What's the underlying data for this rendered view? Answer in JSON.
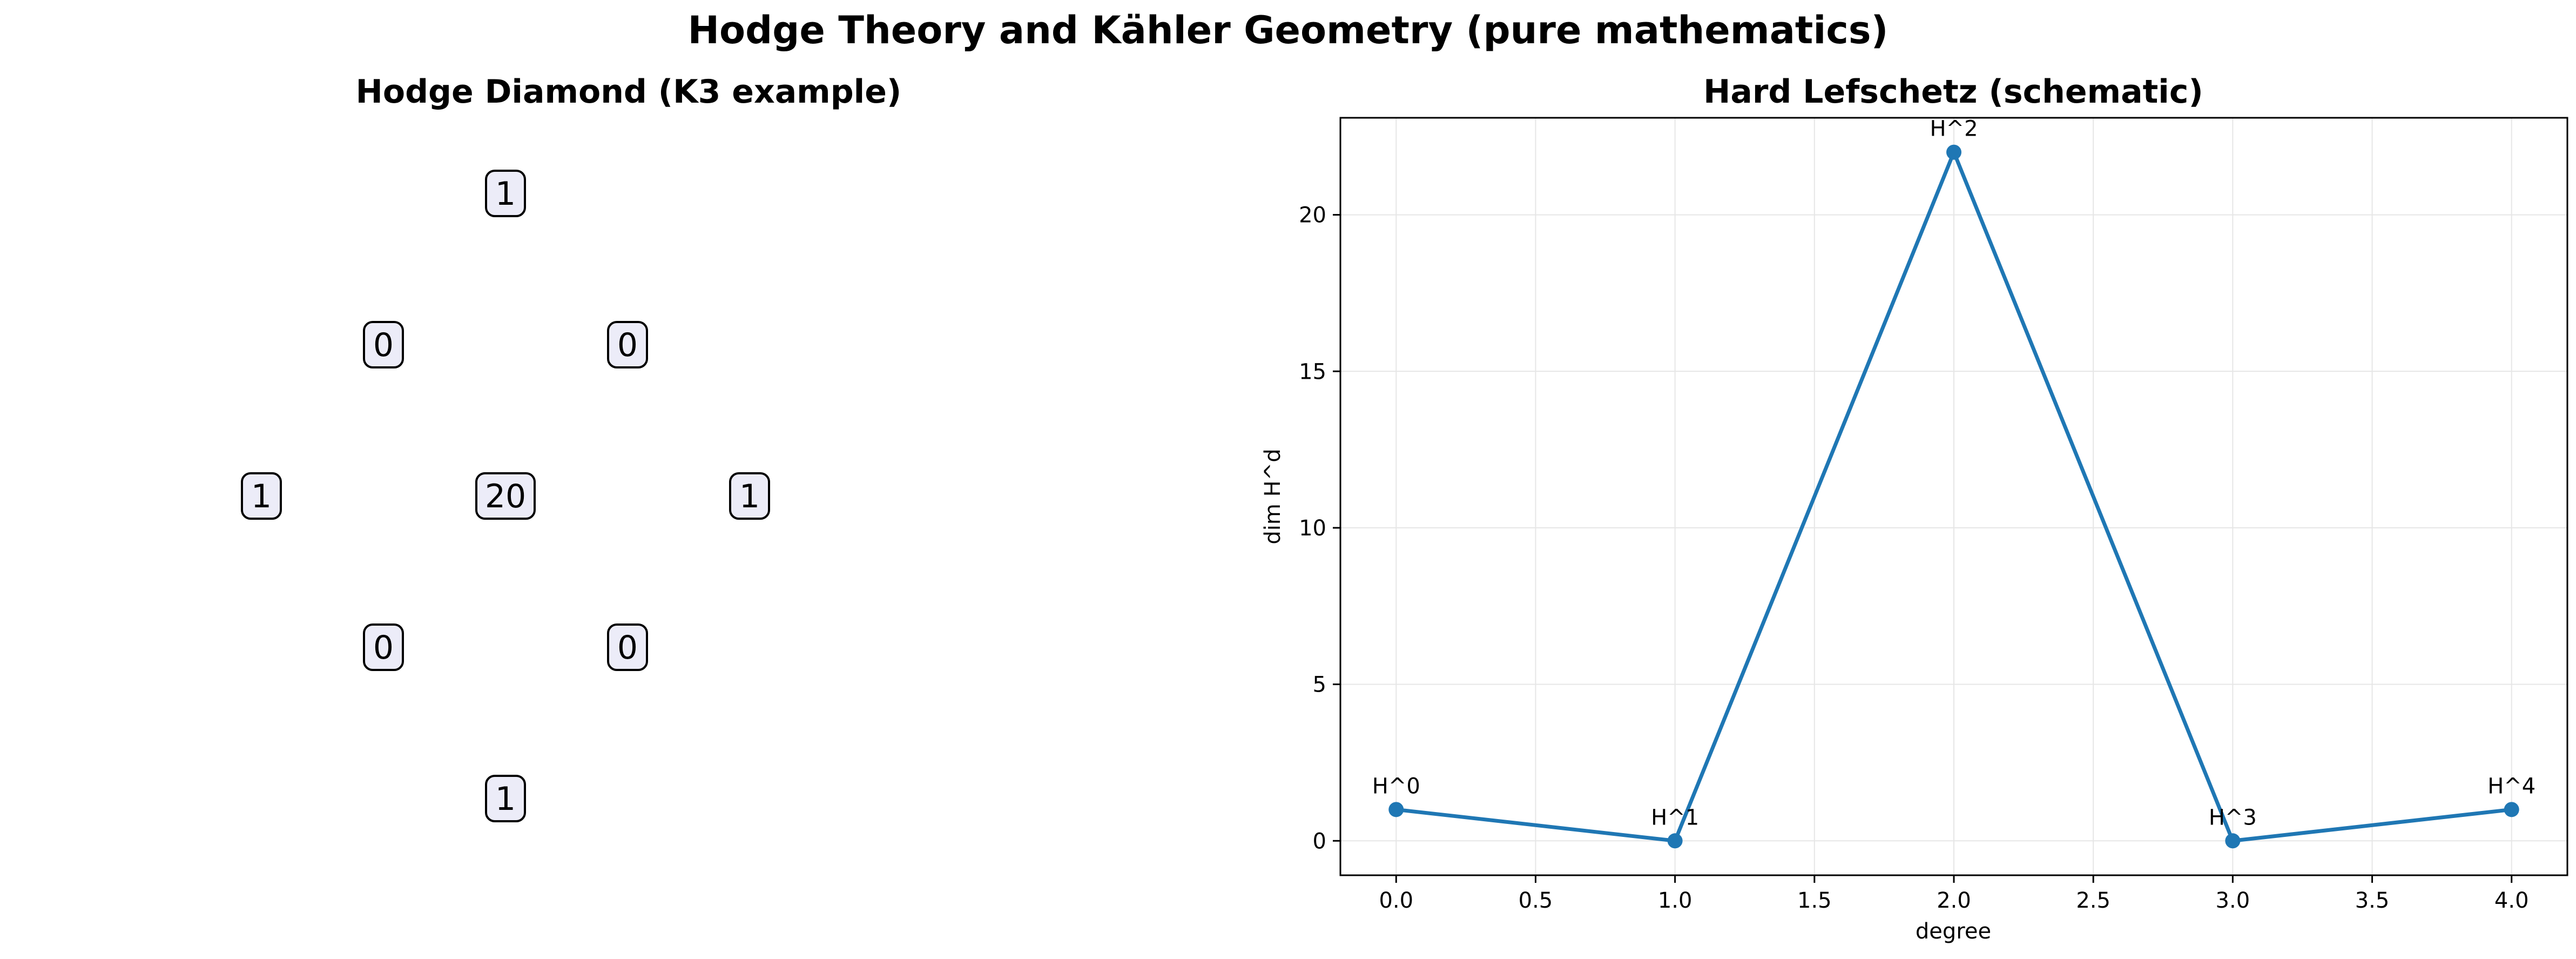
{
  "figure": {
    "suptitle": "Hodge Theory and Kähler Geometry (pure mathematics)"
  },
  "colors": {
    "line": "#1f77b4",
    "node_fill": "#ececf8",
    "node_border": "#000000",
    "grid": "#e6e6e6"
  },
  "chart_data": [
    {
      "type": "diagram",
      "title": "Hodge Diamond (K3 example)",
      "rows": [
        [
          "1"
        ],
        [
          "0",
          "0"
        ],
        [
          "1",
          "20",
          "1"
        ],
        [
          "0",
          "0"
        ],
        [
          "1"
        ]
      ]
    },
    {
      "type": "line",
      "title": "Hard Lefschetz (schematic)",
      "xlabel": "degree",
      "ylabel": "dim H^d",
      "x": [
        0,
        1,
        2,
        3,
        4
      ],
      "series": [
        {
          "values": [
            1,
            0,
            22,
            0,
            1
          ],
          "labels": [
            "H^0",
            "H^1",
            "H^2",
            "H^3",
            "H^4"
          ]
        }
      ],
      "xlim": [
        -0.2,
        4.2
      ],
      "ylim": [
        -1.1,
        23.1
      ],
      "xticks": [
        0.0,
        0.5,
        1.0,
        1.5,
        2.0,
        2.5,
        3.0,
        3.5,
        4.0
      ],
      "xtick_labels": [
        "0.0",
        "0.5",
        "1.0",
        "1.5",
        "2.0",
        "2.5",
        "3.0",
        "3.5",
        "4.0"
      ],
      "yticks": [
        0,
        5,
        10,
        15,
        20
      ],
      "ytick_labels": [
        "0",
        "5",
        "10",
        "15",
        "20"
      ],
      "grid": true,
      "markers": true
    }
  ]
}
